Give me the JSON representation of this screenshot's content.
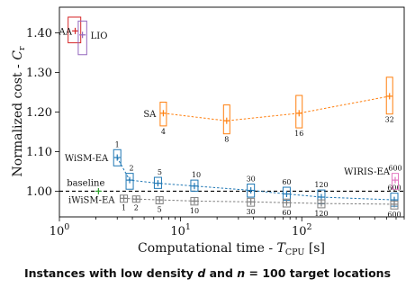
{
  "chart_data": {
    "type": "scatter",
    "xscale": "log",
    "xlim": [
      1,
      700
    ],
    "ylim": [
      0.935,
      1.465
    ],
    "xlabel": "Computational time - T_CPU [s]",
    "xlabel_main": "Computational time - ",
    "xlabel_var": "T",
    "xlabel_sub": "CPU",
    "xlabel_unit": " [s]",
    "ylabel": "Normalized cost - C_r",
    "ylabel_main": "Normalized cost - ",
    "ylabel_var": "C",
    "ylabel_sub": "r",
    "xticks": [
      1,
      10,
      100
    ],
    "xtick_labels": [
      "10^0",
      "10^1",
      "10^2"
    ],
    "yticks": [
      1.0,
      1.1,
      1.2,
      1.3,
      1.4
    ],
    "ytick_labels": [
      "1.00",
      "1.10",
      "1.20",
      "1.30",
      "1.40"
    ],
    "grid": false,
    "baseline": {
      "y": 1.0,
      "label": "baseline",
      "color": "#000000"
    },
    "series": [
      {
        "name": "AA",
        "color": "#d62728",
        "connected": false,
        "points": [
          {
            "x": 1.35,
            "y": 1.405,
            "ylo": 1.375,
            "yhi": 1.44,
            "xlo": 1.18,
            "xhi": 1.5,
            "label": ""
          }
        ]
      },
      {
        "name": "LIO",
        "color": "#9467bd",
        "connected": false,
        "points": [
          {
            "x": 1.55,
            "y": 1.395,
            "ylo": 1.345,
            "yhi": 1.43,
            "xlo": 1.43,
            "xhi": 1.68,
            "label": ""
          }
        ]
      },
      {
        "name": "SA",
        "color": "#ff7f0e",
        "connected": true,
        "points": [
          {
            "x": 7.2,
            "y": 1.197,
            "ylo": 1.165,
            "yhi": 1.225,
            "label": "4"
          },
          {
            "x": 24,
            "y": 1.178,
            "ylo": 1.145,
            "yhi": 1.218,
            "label": "8"
          },
          {
            "x": 95,
            "y": 1.197,
            "ylo": 1.16,
            "yhi": 1.242,
            "label": "16"
          },
          {
            "x": 530,
            "y": 1.24,
            "ylo": 1.195,
            "yhi": 1.288,
            "label": "32"
          }
        ]
      },
      {
        "name": "WiSM-EA",
        "color": "#1f77b4",
        "connected": true,
        "points": [
          {
            "x": 3.0,
            "y": 1.085,
            "ylo": 1.064,
            "yhi": 1.105,
            "label": "1"
          },
          {
            "x": 3.8,
            "y": 1.028,
            "ylo": 1.005,
            "yhi": 1.045,
            "label": "2"
          },
          {
            "x": 6.5,
            "y": 1.02,
            "ylo": 1.007,
            "yhi": 1.035,
            "label": "5"
          },
          {
            "x": 13,
            "y": 1.013,
            "ylo": 1.0,
            "yhi": 1.028,
            "label": "10"
          },
          {
            "x": 38,
            "y": 1.002,
            "ylo": 0.985,
            "yhi": 1.018,
            "label": "30"
          },
          {
            "x": 75,
            "y": 0.993,
            "ylo": 0.977,
            "yhi": 1.01,
            "label": "60"
          },
          {
            "x": 145,
            "y": 0.985,
            "ylo": 0.968,
            "yhi": 1.003,
            "label": "120"
          },
          {
            "x": 580,
            "y": 0.978,
            "ylo": 0.962,
            "yhi": 0.995,
            "label": "600"
          }
        ]
      },
      {
        "name": "iWiSM-EA",
        "color": "#7f7f7f",
        "connected": true,
        "points": [
          {
            "x": 3.4,
            "y": 0.982,
            "ylo": 0.972,
            "yhi": 0.99,
            "label": "1"
          },
          {
            "x": 4.3,
            "y": 0.98,
            "ylo": 0.972,
            "yhi": 0.988,
            "label": "2"
          },
          {
            "x": 6.7,
            "y": 0.978,
            "ylo": 0.968,
            "yhi": 0.986,
            "label": "5"
          },
          {
            "x": 13,
            "y": 0.975,
            "ylo": 0.965,
            "yhi": 0.984,
            "label": "10"
          },
          {
            "x": 38,
            "y": 0.973,
            "ylo": 0.962,
            "yhi": 0.982,
            "label": "30"
          },
          {
            "x": 75,
            "y": 0.971,
            "ylo": 0.96,
            "yhi": 0.98,
            "label": "60"
          },
          {
            "x": 145,
            "y": 0.969,
            "ylo": 0.958,
            "yhi": 0.978,
            "label": "120"
          },
          {
            "x": 580,
            "y": 0.967,
            "ylo": 0.955,
            "yhi": 0.975,
            "label": "600"
          }
        ]
      },
      {
        "name": "WIRIS-EA",
        "color": "#e377c2",
        "connected": false,
        "points": [
          {
            "x": 590,
            "y": 1.028,
            "ylo": 1.005,
            "yhi": 1.045,
            "label": "600"
          }
        ]
      },
      {
        "name": "",
        "color": "#2ca02c",
        "connected": false,
        "points": [
          {
            "x": 2.1,
            "y": 1.0,
            "label": ""
          }
        ]
      }
    ]
  },
  "caption": {
    "prefix": "Instances with low density ",
    "var_d": "d",
    "middle": " and ",
    "var_n": "n",
    "suffix": " = 100 target locations"
  }
}
